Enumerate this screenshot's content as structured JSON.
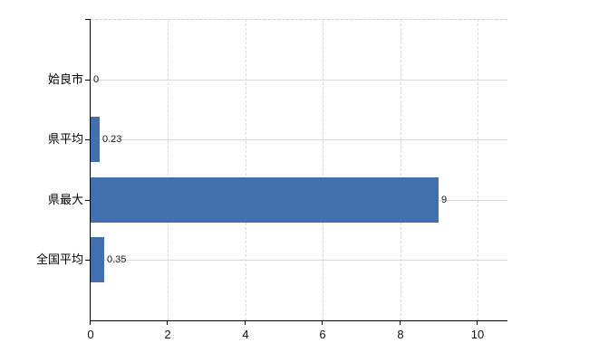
{
  "chart_data": {
    "type": "bar",
    "orientation": "horizontal",
    "title": "",
    "xlabel": "",
    "ylabel": "",
    "categories": [
      "姶良市",
      "県平均",
      "県最大",
      "全国平均"
    ],
    "values": [
      0,
      0.23,
      9,
      0.35
    ],
    "value_labels": [
      "0",
      "0.23",
      "9",
      "0.35"
    ],
    "xticks": [
      0,
      2,
      4,
      6,
      8,
      10
    ],
    "xlim": [
      0,
      10.77
    ],
    "grid": true,
    "legend": "none",
    "bar_color": "#4170ac",
    "gridline_color": "#d9d9d9",
    "axis_color": "#000000",
    "background_color": "#ffffff"
  }
}
